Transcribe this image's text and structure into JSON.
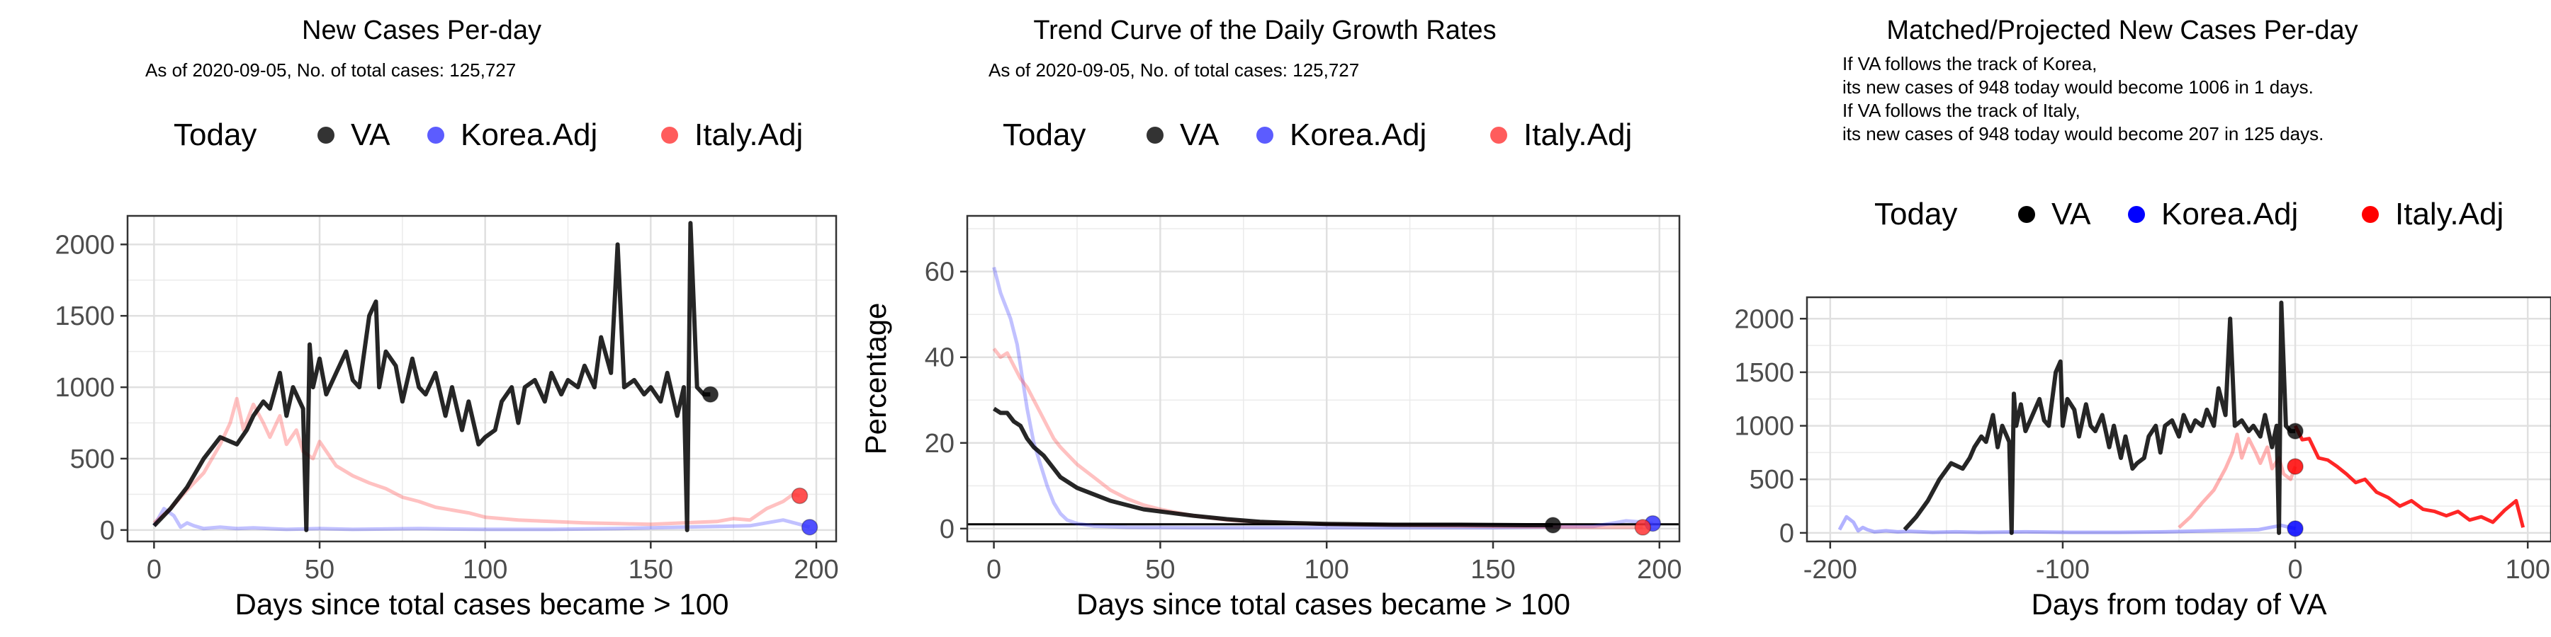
{
  "chart_data": [
    {
      "type": "line",
      "title": "New Cases Per-day",
      "subtitle": "As of 2020-09-05, No. of total cases: 125,727",
      "xlabel": "Days since total cases became > 100",
      "ylabel": "",
      "xlim": [
        -8,
        206
      ],
      "ylim": [
        -80,
        2200
      ],
      "xticks": [
        0,
        50,
        100,
        150,
        200
      ],
      "yticks": [
        0,
        500,
        1000,
        1500,
        2000
      ],
      "legend": {
        "placement": "top",
        "title": "Today",
        "entries": [
          "VA",
          "Korea.Adj",
          "Italy.Adj"
        ]
      },
      "colors": {
        "VA": "#000000",
        "Korea.Adj": "#3333ff",
        "Italy.Adj": "#ff3333"
      },
      "series": [
        {
          "name": "VA",
          "x": [
            0,
            5,
            10,
            15,
            20,
            25,
            28,
            30,
            33,
            35,
            38,
            40,
            42,
            45,
            46,
            47,
            48,
            50,
            52,
            55,
            58,
            60,
            62,
            65,
            67,
            68,
            70,
            73,
            75,
            78,
            80,
            82,
            85,
            88,
            90,
            93,
            95,
            98,
            100,
            103,
            105,
            108,
            110,
            112,
            115,
            118,
            120,
            123,
            125,
            128,
            130,
            133,
            135,
            138,
            140,
            142,
            145,
            148,
            150,
            153,
            155,
            158,
            160,
            161,
            162,
            164,
            166,
            168
          ],
          "y": [
            30,
            150,
            300,
            500,
            650,
            600,
            700,
            800,
            900,
            850,
            1100,
            800,
            1000,
            850,
            0,
            1300,
            1000,
            1200,
            950,
            1100,
            1250,
            1050,
            1000,
            1500,
            1600,
            1000,
            1250,
            1150,
            900,
            1200,
            1000,
            950,
            1100,
            800,
            1000,
            700,
            900,
            600,
            650,
            700,
            900,
            1000,
            750,
            1000,
            1050,
            900,
            1100,
            950,
            1050,
            1000,
            1150,
            1000,
            1350,
            1100,
            2000,
            1000,
            1050,
            950,
            1000,
            900,
            1100,
            800,
            1000,
            0,
            2150,
            1000,
            950,
            950
          ]
        },
        {
          "name": "Korea.Adj",
          "x": [
            0,
            3,
            6,
            8,
            10,
            12,
            15,
            20,
            25,
            30,
            40,
            50,
            60,
            80,
            100,
            120,
            140,
            160,
            180,
            190,
            195,
            198
          ],
          "y": [
            30,
            150,
            100,
            20,
            50,
            30,
            10,
            20,
            10,
            15,
            5,
            10,
            5,
            10,
            5,
            5,
            10,
            20,
            30,
            70,
            40,
            20
          ]
        },
        {
          "name": "Italy.Adj",
          "x": [
            0,
            5,
            10,
            15,
            20,
            23,
            25,
            27,
            30,
            33,
            35,
            38,
            40,
            43,
            45,
            48,
            50,
            55,
            60,
            65,
            70,
            75,
            80,
            85,
            90,
            95,
            100,
            110,
            120,
            130,
            140,
            150,
            160,
            170,
            175,
            180,
            185,
            190,
            193,
            195
          ],
          "y": [
            50,
            150,
            280,
            400,
            600,
            750,
            920,
            700,
            880,
            750,
            650,
            800,
            600,
            700,
            550,
            500,
            620,
            450,
            380,
            330,
            290,
            230,
            200,
            160,
            140,
            120,
            90,
            70,
            60,
            50,
            45,
            40,
            50,
            60,
            80,
            70,
            150,
            200,
            250,
            240
          ]
        }
      ]
    },
    {
      "type": "line",
      "title": "Trend Curve of the Daily Growth Rates",
      "subtitle": "As of 2020-09-05, No. of total cases: 125,727",
      "xlabel": "Days since total cases became > 100",
      "ylabel": "Percentage",
      "xlim": [
        -8,
        206
      ],
      "ylim": [
        -3,
        73
      ],
      "xticks": [
        0,
        50,
        100,
        150,
        200
      ],
      "yticks": [
        0,
        20,
        40,
        60
      ],
      "hline": 1,
      "legend": {
        "placement": "top",
        "title": "Today",
        "entries": [
          "VA",
          "Korea.Adj",
          "Italy.Adj"
        ]
      },
      "colors": {
        "VA": "#000000",
        "Korea.Adj": "#3333ff",
        "Italy.Adj": "#ff3333"
      },
      "series": [
        {
          "name": "VA",
          "x": [
            0,
            2,
            4,
            6,
            8,
            10,
            12,
            15,
            18,
            20,
            25,
            30,
            35,
            40,
            45,
            50,
            55,
            60,
            70,
            80,
            90,
            100,
            120,
            140,
            160,
            168
          ],
          "y": [
            28,
            27,
            27,
            25,
            24,
            21,
            19,
            17,
            14,
            12,
            9.5,
            8,
            6.5,
            5.5,
            4.5,
            4,
            3.5,
            3,
            2.2,
            1.6,
            1.3,
            1.1,
            0.9,
            0.9,
            0.8,
            0.8
          ]
        },
        {
          "name": "Korea.Adj",
          "x": [
            0,
            1,
            2,
            3,
            4,
            5,
            6,
            7,
            8,
            9,
            10,
            11,
            12,
            14,
            16,
            18,
            20,
            22,
            25,
            30,
            40,
            60,
            100,
            150,
            180,
            190,
            195,
            198
          ],
          "y": [
            61,
            58,
            55,
            53,
            51,
            49,
            46,
            43,
            38,
            33,
            28,
            24,
            20,
            15,
            10,
            6,
            3.5,
            2,
            1.2,
            0.6,
            0.3,
            0.2,
            0.2,
            0.2,
            0.5,
            1.8,
            1.5,
            1.2
          ]
        },
        {
          "name": "Italy.Adj",
          "x": [
            0,
            2,
            4,
            6,
            8,
            10,
            12,
            14,
            16,
            18,
            20,
            25,
            30,
            35,
            40,
            45,
            50,
            60,
            70,
            80,
            100,
            150,
            180,
            195
          ],
          "y": [
            42,
            40,
            41,
            38,
            35,
            33,
            30,
            27,
            24,
            21,
            19,
            15,
            12,
            9,
            7,
            5.5,
            4.5,
            3,
            2,
            1.5,
            1,
            0.5,
            0.3,
            0.3
          ]
        }
      ]
    },
    {
      "type": "line",
      "title": "Matched/Projected New Cases Per-day",
      "annotation": [
        "If VA follows the track of Korea,",
        "its new cases of 948 today would become 1006 in 1 days.",
        "If VA follows the track of Italy,",
        "its new cases of 948 today would become 207 in 125 days."
      ],
      "xlabel": "Days from today of VA",
      "ylabel": "",
      "xlim": [
        -210,
        110
      ],
      "ylim": [
        -80,
        2200
      ],
      "xticks": [
        -200,
        -100,
        0,
        100
      ],
      "yticks": [
        0,
        500,
        1000,
        1500,
        2000
      ],
      "legend": {
        "placement": "top",
        "title": "Today",
        "entries": [
          "VA",
          "Korea.Adj",
          "Italy.Adj"
        ]
      },
      "colors": {
        "VA": "#000000",
        "Korea.Adj": "#0000ff",
        "Italy.Adj": "#ff0000"
      },
      "series": [
        {
          "name": "VA",
          "x": [
            -168,
            -163,
            -158,
            -153,
            -148,
            -143,
            -140,
            -138,
            -135,
            -133,
            -130,
            -128,
            -126,
            -123,
            -122,
            -121,
            -120,
            -118,
            -116,
            -113,
            -110,
            -108,
            -106,
            -103,
            -101,
            -100,
            -98,
            -95,
            -93,
            -90,
            -88,
            -86,
            -83,
            -80,
            -78,
            -75,
            -73,
            -70,
            -68,
            -65,
            -63,
            -60,
            -58,
            -56,
            -53,
            -50,
            -48,
            -45,
            -43,
            -40,
            -38,
            -35,
            -33,
            -30,
            -28,
            -26,
            -23,
            -20,
            -18,
            -15,
            -13,
            -10,
            -8,
            -7,
            -6,
            -4,
            -2,
            0
          ],
          "y": [
            30,
            150,
            300,
            500,
            650,
            600,
            700,
            800,
            900,
            850,
            1100,
            800,
            1000,
            850,
            0,
            1300,
            1000,
            1200,
            950,
            1100,
            1250,
            1050,
            1000,
            1500,
            1600,
            1000,
            1250,
            1150,
            900,
            1200,
            1000,
            950,
            1100,
            800,
            1000,
            700,
            900,
            600,
            650,
            700,
            900,
            1000,
            750,
            1000,
            1050,
            900,
            1100,
            950,
            1050,
            1000,
            1150,
            1000,
            1350,
            1100,
            2000,
            1000,
            1050,
            950,
            1000,
            900,
            1100,
            800,
            1000,
            0,
            2150,
            1000,
            950,
            950
          ]
        },
        {
          "name": "Korea.Adj",
          "x": [
            -196,
            -193,
            -190,
            -188,
            -186,
            -184,
            -181,
            -176,
            -171,
            -166,
            -156,
            -146,
            -136,
            -116,
            -96,
            -76,
            -56,
            -36,
            -16,
            -6,
            0
          ],
          "y": [
            30,
            150,
            100,
            20,
            50,
            30,
            10,
            20,
            10,
            15,
            5,
            10,
            5,
            10,
            5,
            5,
            10,
            20,
            30,
            70,
            40
          ]
        },
        {
          "name": "Italy.Adj",
          "x": [
            -50,
            -45,
            -40,
            -35,
            -30,
            -27,
            -25,
            -23,
            -20,
            -17,
            -15,
            -12,
            -10,
            -7,
            -5,
            -2,
            0
          ],
          "y": [
            50,
            150,
            280,
            400,
            600,
            750,
            920,
            700,
            880,
            750,
            650,
            800,
            600,
            700,
            550,
            500,
            620
          ]
        },
        {
          "name": "Italy.Adj projected",
          "x": [
            0,
            3,
            6,
            10,
            14,
            18,
            22,
            26,
            30,
            35,
            40,
            45,
            50,
            55,
            60,
            65,
            70,
            75,
            80,
            85,
            90,
            95,
            98
          ],
          "y": [
            1000,
            870,
            880,
            700,
            680,
            620,
            550,
            470,
            500,
            380,
            330,
            250,
            300,
            220,
            200,
            160,
            200,
            120,
            150,
            100,
            210,
            300,
            50
          ]
        }
      ]
    }
  ]
}
